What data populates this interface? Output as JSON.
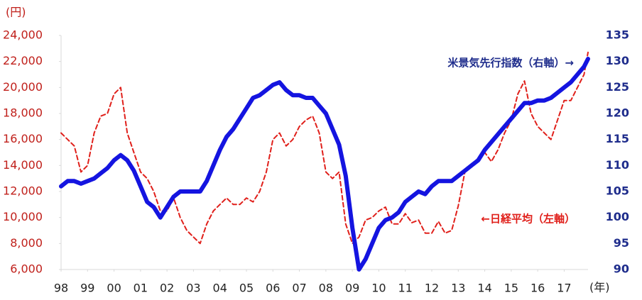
{
  "chart_data": {
    "type": "line",
    "y_unit_label": "(円)",
    "x_unit_label": "(年)",
    "x": [
      1998,
      1998.25,
      1998.5,
      1998.75,
      1999,
      1999.25,
      1999.5,
      1999.75,
      2000,
      2000.25,
      2000.5,
      2000.75,
      2001,
      2001.25,
      2001.5,
      2001.75,
      2002,
      2002.25,
      2002.5,
      2002.75,
      2003,
      2003.25,
      2003.5,
      2003.75,
      2004,
      2004.25,
      2004.5,
      2004.75,
      2005,
      2005.25,
      2005.5,
      2005.75,
      2006,
      2006.25,
      2006.5,
      2006.75,
      2007,
      2007.25,
      2007.5,
      2007.75,
      2008,
      2008.25,
      2008.5,
      2008.75,
      2009,
      2009.25,
      2009.5,
      2009.75,
      2010,
      2010.25,
      2010.5,
      2010.75,
      2011,
      2011.25,
      2011.5,
      2011.75,
      2012,
      2012.25,
      2012.5,
      2012.75,
      2013,
      2013.25,
      2013.5,
      2013.75,
      2014,
      2014.25,
      2014.5,
      2014.75,
      2015,
      2015.25,
      2015.5,
      2015.75,
      2016,
      2016.25,
      2016.5,
      2016.75,
      2017,
      2017.25,
      2017.5,
      2017.75,
      2017.9
    ],
    "series": [
      {
        "name": "←日経平均（左軸）",
        "color": "#e0201b",
        "style": "dashed",
        "axis": "y",
        "values": [
          16500,
          16000,
          15500,
          13500,
          14000,
          16500,
          17800,
          18000,
          19500,
          20000,
          16500,
          15000,
          13500,
          13000,
          12000,
          10500,
          10500,
          11500,
          10000,
          9000,
          8500,
          8000,
          9500,
          10500,
          11000,
          11500,
          11000,
          11000,
          11500,
          11200,
          12000,
          13500,
          16000,
          16500,
          15500,
          16000,
          17000,
          17500,
          17800,
          16500,
          13500,
          13000,
          13500,
          9500,
          8000,
          8500,
          9800,
          10000,
          10500,
          10800,
          9500,
          9500,
          10300,
          9600,
          9800,
          8800,
          8800,
          9700,
          8800,
          9000,
          10900,
          13500,
          14000,
          14500,
          15000,
          14300,
          15200,
          16500,
          17500,
          19500,
          20500,
          18000,
          17000,
          16500,
          16000,
          17500,
          19000,
          19000,
          20000,
          21000,
          22700
        ]
      },
      {
        "name": "米景気先行指数（右軸）→",
        "color": "#1414e0",
        "style": "solid",
        "axis": "y2",
        "values": [
          106,
          107,
          107,
          106.5,
          107,
          107.5,
          108.5,
          109.5,
          111,
          112,
          111,
          109,
          106,
          103,
          102,
          100,
          102,
          104,
          105,
          105,
          105,
          105,
          107,
          110,
          113,
          115.5,
          117,
          119,
          121,
          123,
          123.5,
          124.5,
          125.5,
          126,
          124.5,
          123.5,
          123.5,
          123,
          123,
          121.5,
          120,
          117,
          114,
          108,
          98,
          90,
          92,
          95,
          98,
          99.5,
          100,
          101,
          103,
          104,
          105,
          104.5,
          106,
          107,
          107,
          107,
          108,
          109,
          110,
          111,
          113,
          114.5,
          116,
          117.5,
          119,
          120.5,
          122,
          122,
          122.5,
          122.5,
          123,
          124,
          125,
          126,
          127.5,
          129,
          130.5
        ]
      }
    ],
    "xlim": [
      1998,
      2017.9
    ],
    "xticks": [
      {
        "value": 1998,
        "label": "98"
      },
      {
        "value": 1999,
        "label": "99"
      },
      {
        "value": 2000,
        "label": "00"
      },
      {
        "value": 2001,
        "label": "01"
      },
      {
        "value": 2002,
        "label": "02"
      },
      {
        "value": 2003,
        "label": "03"
      },
      {
        "value": 2004,
        "label": "04"
      },
      {
        "value": 2005,
        "label": "05"
      },
      {
        "value": 2006,
        "label": "06"
      },
      {
        "value": 2007,
        "label": "07"
      },
      {
        "value": 2008,
        "label": "08"
      },
      {
        "value": 2009,
        "label": "09"
      },
      {
        "value": 2010,
        "label": "10"
      },
      {
        "value": 2011,
        "label": "11"
      },
      {
        "value": 2012,
        "label": "12"
      },
      {
        "value": 2013,
        "label": "13"
      },
      {
        "value": 2014,
        "label": "14"
      },
      {
        "value": 2015,
        "label": "15"
      },
      {
        "value": 2016,
        "label": "16"
      },
      {
        "value": 2017,
        "label": "17"
      }
    ],
    "ylim": [
      6000,
      24000
    ],
    "yticks": [
      {
        "value": 6000,
        "label": "6,000"
      },
      {
        "value": 8000,
        "label": "8,000"
      },
      {
        "value": 10000,
        "label": "10,000"
      },
      {
        "value": 12000,
        "label": "12,000"
      },
      {
        "value": 14000,
        "label": "14,000"
      },
      {
        "value": 16000,
        "label": "16,000"
      },
      {
        "value": 18000,
        "label": "18,000"
      },
      {
        "value": 20000,
        "label": "20,000"
      },
      {
        "value": 22000,
        "label": "22,000"
      },
      {
        "value": 24000,
        "label": "24,000"
      }
    ],
    "y2lim": [
      90,
      135
    ],
    "y2ticks": [
      90,
      95,
      100,
      105,
      110,
      115,
      120,
      125,
      130,
      135
    ],
    "grid": false
  }
}
